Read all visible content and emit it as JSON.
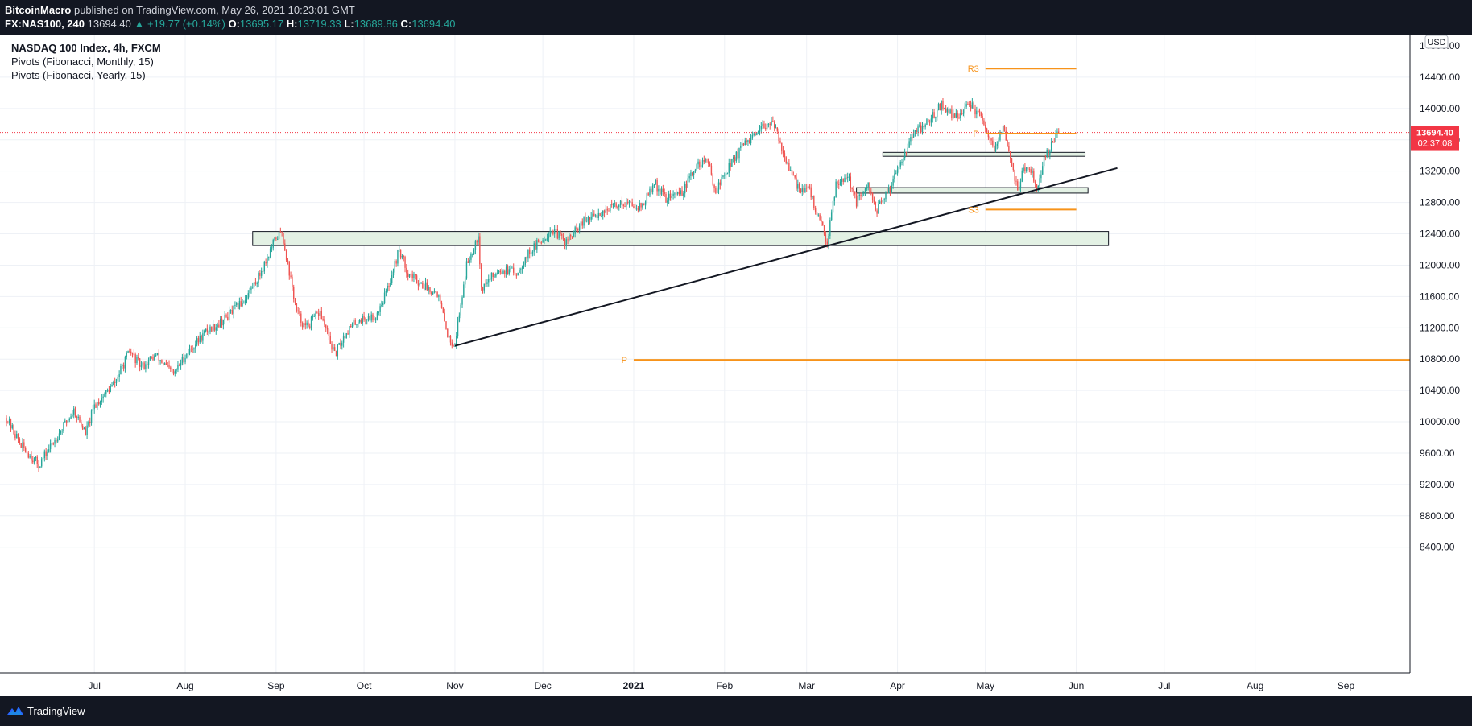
{
  "header": {
    "author": "BitcoinMacro",
    "published_text": "published on TradingView.com, May 26, 2021 10:23:01 GMT",
    "symbol": "FX:NAS100, 240",
    "last": "13694.40",
    "change": "+19.77 (+0.14%)",
    "o_label": "O:",
    "o_value": "13695.17",
    "h_label": "H:",
    "h_value": "13719.33",
    "l_label": "L:",
    "l_value": "13689.86",
    "c_label": "C:",
    "c_value": "13694.40"
  },
  "legend": {
    "title": "NASDAQ 100 Index, 4h, FXCM",
    "indicator_1": "Pivots (Fibonacci, Monthly, 15)",
    "indicator_2": "Pivots (Fibonacci, Yearly, 15)"
  },
  "footer": {
    "brand": "TradingView"
  },
  "colors": {
    "up": "#26a69a",
    "down": "#ef5350",
    "pivot": "#f7931a",
    "zone_fill": "#e3f1e4",
    "price_tag": "#f23645"
  },
  "chart_data": {
    "type": "candlestick",
    "title": "NASDAQ 100 Index, 4h, FXCM",
    "currency": "USD",
    "ylim": [
      8000,
      14600
    ],
    "x_start": "2021-06-01",
    "x_end": "2021-09-30",
    "y_ticks": [
      "14400.00",
      "14000.00",
      "13600.00",
      "13200.00",
      "12800.00",
      "12400.00",
      "12000.00",
      "11600.00",
      "11200.00",
      "10800.00",
      "10400.00",
      "10000.00",
      "9600.00",
      "9200.00",
      "8800.00",
      "8400.00"
    ],
    "y_top_partial": "14800.00",
    "x_ticks": [
      {
        "date": "2020-07-01",
        "label": "Jul"
      },
      {
        "date": "2020-08-01",
        "label": "Aug"
      },
      {
        "date": "2020-09-01",
        "label": "Sep"
      },
      {
        "date": "2020-10-01",
        "label": "Oct"
      },
      {
        "date": "2020-11-01",
        "label": "Nov"
      },
      {
        "date": "2020-12-01",
        "label": "Dec"
      },
      {
        "date": "2021-01-01",
        "label": "2021"
      },
      {
        "date": "2021-02-01",
        "label": "Feb"
      },
      {
        "date": "2021-03-01",
        "label": "Mar"
      },
      {
        "date": "2021-04-01",
        "label": "Apr"
      },
      {
        "date": "2021-05-01",
        "label": "May"
      },
      {
        "date": "2021-06-01",
        "label": "Jun"
      },
      {
        "date": "2021-07-01",
        "label": "Jul"
      },
      {
        "date": "2021-08-01",
        "label": "Aug"
      },
      {
        "date": "2021-09-01",
        "label": "Sep"
      }
    ],
    "price_path": [
      [
        "2020-06-01",
        10050
      ],
      [
        "2020-06-06",
        9700
      ],
      [
        "2020-06-12",
        9450
      ],
      [
        "2020-06-18",
        9800
      ],
      [
        "2020-06-24",
        10150
      ],
      [
        "2020-06-28",
        9850
      ],
      [
        "2020-07-01",
        10200
      ],
      [
        "2020-07-08",
        10500
      ],
      [
        "2020-07-13",
        10900
      ],
      [
        "2020-07-17",
        10700
      ],
      [
        "2020-07-22",
        10850
      ],
      [
        "2020-07-28",
        10600
      ],
      [
        "2020-08-01",
        10850
      ],
      [
        "2020-08-08",
        11150
      ],
      [
        "2020-08-14",
        11300
      ],
      [
        "2020-08-21",
        11550
      ],
      [
        "2020-08-26",
        11850
      ],
      [
        "2020-08-29",
        12100
      ],
      [
        "2020-09-01",
        12350
      ],
      [
        "2020-09-03",
        12420
      ],
      [
        "2020-09-08",
        11400
      ],
      [
        "2020-09-11",
        11200
      ],
      [
        "2020-09-16",
        11400
      ],
      [
        "2020-09-21",
        10850
      ],
      [
        "2020-09-25",
        11150
      ],
      [
        "2020-09-29",
        11300
      ],
      [
        "2020-10-05",
        11350
      ],
      [
        "2020-10-09",
        11700
      ],
      [
        "2020-10-13",
        12200
      ],
      [
        "2020-10-16",
        11900
      ],
      [
        "2020-10-21",
        11750
      ],
      [
        "2020-10-26",
        11650
      ],
      [
        "2020-10-30",
        11050
      ],
      [
        "2020-11-01",
        11000
      ],
      [
        "2020-11-05",
        12000
      ],
      [
        "2020-11-09",
        12400
      ],
      [
        "2020-11-10",
        11700
      ],
      [
        "2020-11-16",
        11950
      ],
      [
        "2020-11-22",
        11900
      ],
      [
        "2020-11-26",
        12150
      ],
      [
        "2020-11-30",
        12300
      ],
      [
        "2020-12-04",
        12450
      ],
      [
        "2020-12-09",
        12300
      ],
      [
        "2020-12-15",
        12550
      ],
      [
        "2020-12-22",
        12700
      ],
      [
        "2020-12-28",
        12800
      ],
      [
        "2021-01-04",
        12750
      ],
      [
        "2021-01-08",
        13050
      ],
      [
        "2021-01-12",
        12850
      ],
      [
        "2021-01-18",
        12950
      ],
      [
        "2021-01-22",
        13250
      ],
      [
        "2021-01-26",
        13350
      ],
      [
        "2021-01-29",
        12950
      ],
      [
        "2021-02-03",
        13300
      ],
      [
        "2021-02-08",
        13550
      ],
      [
        "2021-02-12",
        13650
      ],
      [
        "2021-02-16",
        13850
      ],
      [
        "2021-02-19",
        13700
      ],
      [
        "2021-02-23",
        13200
      ],
      [
        "2021-02-26",
        13000
      ],
      [
        "2021-03-02",
        12950
      ],
      [
        "2021-03-05",
        12600
      ],
      [
        "2021-03-08",
        12300
      ],
      [
        "2021-03-11",
        13050
      ],
      [
        "2021-03-15",
        13150
      ],
      [
        "2021-03-18",
        12800
      ],
      [
        "2021-03-22",
        13000
      ],
      [
        "2021-03-25",
        12700
      ],
      [
        "2021-03-29",
        12950
      ],
      [
        "2021-04-01",
        13250
      ],
      [
        "2021-04-06",
        13650
      ],
      [
        "2021-04-12",
        13850
      ],
      [
        "2021-04-16",
        14050
      ],
      [
        "2021-04-20",
        13900
      ],
      [
        "2021-04-23",
        13950
      ],
      [
        "2021-04-26",
        14050
      ],
      [
        "2021-04-29",
        13900
      ],
      [
        "2021-05-04",
        13450
      ],
      [
        "2021-05-07",
        13750
      ],
      [
        "2021-05-10",
        13300
      ],
      [
        "2021-05-12",
        12950
      ],
      [
        "2021-05-14",
        13250
      ],
      [
        "2021-05-17",
        13150
      ],
      [
        "2021-05-19",
        12980
      ],
      [
        "2021-05-21",
        13350
      ],
      [
        "2021-05-24",
        13550
      ],
      [
        "2021-05-26",
        13694.4
      ]
    ],
    "last_price": "13694.40",
    "countdown": "02:37:08",
    "zones": [
      {
        "from": "2020-08-24",
        "to": "2021-06-12",
        "low": 12250,
        "high": 12430
      },
      {
        "from": "2021-03-27",
        "to": "2021-06-04",
        "low": 13390,
        "high": 13440
      },
      {
        "from": "2021-03-18",
        "to": "2021-06-05",
        "low": 12920,
        "high": 12990
      }
    ],
    "trendline": {
      "from": [
        "2020-11-01",
        10970
      ],
      "to": [
        "2021-06-15",
        13240
      ]
    },
    "pivots": [
      {
        "label": "R3",
        "value": 14510,
        "from": "2021-05-01",
        "to": "2021-06-01"
      },
      {
        "label": "P",
        "value": 13680,
        "from": "2021-05-01",
        "to": "2021-06-01"
      },
      {
        "label": "S3",
        "value": 12710,
        "from": "2021-05-01",
        "to": "2021-06-01"
      },
      {
        "label": "P",
        "value": 10790,
        "from": "2021-01-01",
        "to": "2021-09-30"
      }
    ]
  }
}
